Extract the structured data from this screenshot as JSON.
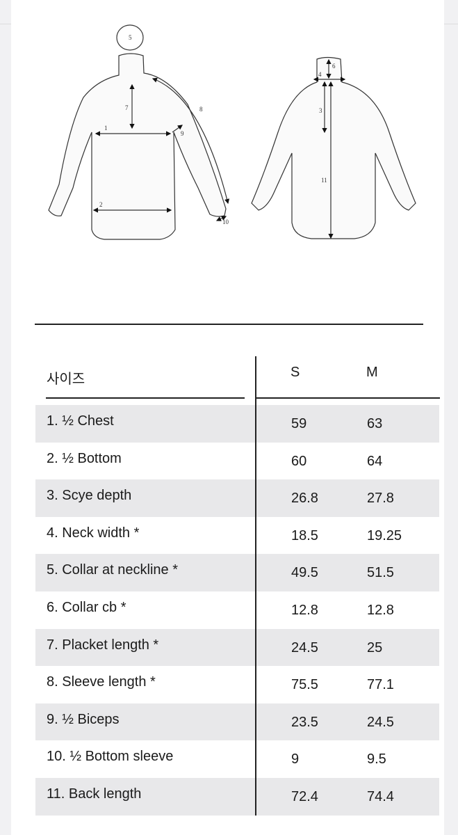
{
  "diagram_labels": {
    "front": [
      "1",
      "2",
      "5",
      "7",
      "8",
      "9",
      "10"
    ],
    "back": [
      "3",
      "4",
      "6",
      "11"
    ]
  },
  "table": {
    "header": {
      "label": "사이즈",
      "sizes": [
        "S",
        "M"
      ]
    },
    "rows": [
      {
        "label": "1. ½ Chest",
        "S": "59",
        "M": "63"
      },
      {
        "label": "2. ½ Bottom",
        "S": "60",
        "M": "64"
      },
      {
        "label": "3. Scye depth",
        "S": "26.8",
        "M": "27.8"
      },
      {
        "label": "4. Neck width *",
        "S": "18.5",
        "M": "19.25"
      },
      {
        "label": "5. Collar at neckline *",
        "S": "49.5",
        "M": "51.5"
      },
      {
        "label": "6. Collar cb *",
        "S": "12.8",
        "M": "12.8"
      },
      {
        "label": "7. Placket length *",
        "S": "24.5",
        "M": "25"
      },
      {
        "label": "8. Sleeve length *",
        "S": "75.5",
        "M": "77.1"
      },
      {
        "label": "9. ½ Biceps",
        "S": "23.5",
        "M": "24.5"
      },
      {
        "label": "10. ½ Bottom sleeve",
        "S": "9",
        "M": "9.5"
      },
      {
        "label": "11. Back length",
        "S": "72.4",
        "M": "74.4"
      }
    ]
  }
}
